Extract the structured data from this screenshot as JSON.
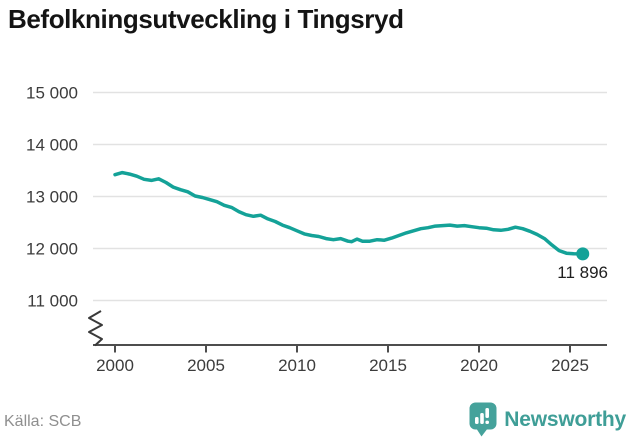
{
  "title": "Befolkningsutveckling i Tingsryd",
  "source": "Källa: SCB",
  "branding": {
    "logo_text": "Newsworthy"
  },
  "colors": {
    "background": "#ffffff",
    "line": "#14a298",
    "grid": "#e2e2e2",
    "axis": "#4d4d4d",
    "tick_text": "#3c3c3c",
    "title_text": "#141414",
    "end_label_text": "#202020",
    "source_text": "#8f8f8f",
    "brand": "#3f9e97"
  },
  "chart_data": {
    "type": "line",
    "title": "Befolkningsutveckling i Tingsryd",
    "xlabel": "",
    "ylabel": "",
    "xlim": [
      1999.6,
      2027
    ],
    "ylim": [
      11000,
      15000
    ],
    "grid": "horizontal",
    "axis_break": true,
    "x_ticks": [
      2000,
      2005,
      2010,
      2015,
      2020,
      2025
    ],
    "x_tick_labels": [
      "2000",
      "2005",
      "2010",
      "2015",
      "2020",
      "2025"
    ],
    "y_ticks": [
      15000,
      14000,
      13000,
      12000,
      11000
    ],
    "y_tick_labels": [
      "15 000",
      "14 000",
      "13 000",
      "12 000",
      "11 000"
    ],
    "end_label": "11 896",
    "end_value": 11896,
    "series": [
      {
        "name": "Befolkning",
        "x": [
          2000,
          2000.4,
          2000.8,
          2001.2,
          2001.6,
          2002,
          2002.4,
          2002.8,
          2003.2,
          2003.6,
          2004,
          2004.4,
          2004.8,
          2005.2,
          2005.6,
          2006,
          2006.4,
          2006.8,
          2007.2,
          2007.6,
          2008,
          2008.4,
          2008.8,
          2009.2,
          2009.6,
          2010,
          2010.4,
          2010.8,
          2011.2,
          2011.6,
          2012,
          2012.4,
          2012.8,
          2013,
          2013.3,
          2013.6,
          2014,
          2014.4,
          2014.8,
          2015.2,
          2015.6,
          2016,
          2016.4,
          2016.8,
          2017.2,
          2017.6,
          2018,
          2018.4,
          2018.8,
          2019.2,
          2019.6,
          2020,
          2020.4,
          2020.8,
          2021.2,
          2021.6,
          2022,
          2022.4,
          2022.8,
          2023.2,
          2023.6,
          2024,
          2024.4,
          2024.8,
          2025.2,
          2025.7
        ],
        "y": [
          13420,
          13460,
          13430,
          13390,
          13330,
          13310,
          13340,
          13270,
          13180,
          13130,
          13090,
          13010,
          12980,
          12940,
          12900,
          12830,
          12790,
          12710,
          12650,
          12620,
          12640,
          12570,
          12520,
          12450,
          12400,
          12340,
          12280,
          12250,
          12230,
          12190,
          12170,
          12190,
          12140,
          12130,
          12180,
          12140,
          12140,
          12170,
          12160,
          12200,
          12250,
          12300,
          12340,
          12380,
          12400,
          12430,
          12440,
          12450,
          12430,
          12440,
          12420,
          12400,
          12390,
          12360,
          12350,
          12370,
          12410,
          12380,
          12330,
          12270,
          12190,
          12070,
          11960,
          11910,
          11900,
          11896
        ]
      }
    ]
  }
}
